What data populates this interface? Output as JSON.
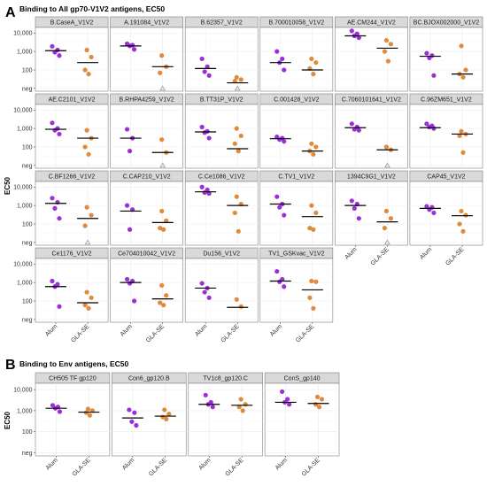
{
  "panel_a": {
    "letter": "A",
    "title": "Binding to All gp70-V1V2 antigens, EC50"
  },
  "panel_b": {
    "letter": "B",
    "title": "Binding to Env antigens, EC50"
  },
  "colors": {
    "alum": "#9b30d9",
    "gla_se": "#e08a3c",
    "neg_marker": "#9a9a9a",
    "median": "#000000"
  },
  "chart_data": [
    {
      "type": "scatter",
      "title": "Binding to All gp70-V1V2 antigens, EC50",
      "ylabel": "EC50",
      "y_scale": "log10",
      "y_ticks": [
        "neg",
        "100",
        "1,000",
        "10,000"
      ],
      "x_categories": [
        "Alum",
        "GLA-SE"
      ],
      "panels": [
        {
          "name": "B.CaseA_V1V2",
          "alum": [
            1900,
            1200,
            900,
            600
          ],
          "gla": [
            1200,
            500,
            100,
            60
          ],
          "alum_median": 1100,
          "gla_median": 250
        },
        {
          "name": "A.191084_V1V2",
          "alum": [
            2600,
            2200,
            2000,
            1300
          ],
          "gla": [
            600,
            150,
            70
          ],
          "gla_neg": 1,
          "alum_median": 2000,
          "gla_median": 150
        },
        {
          "name": "B.62357_V1V2",
          "alum": [
            400,
            150,
            80,
            50
          ],
          "gla": [
            40,
            30,
            25
          ],
          "gla_neg": 1,
          "alum_median": 120,
          "gla_median": 20
        },
        {
          "name": "B.700010058_V1V2",
          "alum": [
            1000,
            400,
            250,
            100
          ],
          "gla": [
            400,
            250,
            120,
            60
          ],
          "alum_median": 250,
          "gla_median": 100
        },
        {
          "name": "AE.CM244_V1V2",
          "alum": [
            13000,
            9000,
            7000,
            5500
          ],
          "gla": [
            4000,
            2500,
            1000,
            300
          ],
          "alum_median": 7000,
          "gla_median": 1500
        },
        {
          "name": "BC.BJOX002000_V1V2",
          "alum": [
            800,
            600,
            450,
            50
          ],
          "gla": [
            2000,
            100,
            60,
            40
          ],
          "alum_median": 550,
          "gla_median": 60
        },
        {
          "name": "AE.C2101_V1V2",
          "alum": [
            2000,
            1000,
            800,
            500
          ],
          "gla": [
            800,
            300,
            100,
            40
          ],
          "alum_median": 900,
          "gla_median": 300
        },
        {
          "name": "B.RHPA4259_V1V2",
          "alum": [
            900,
            300,
            60
          ],
          "gla": [
            250,
            50
          ],
          "gla_neg": 1,
          "alum_median": 300,
          "gla_median": 50
        },
        {
          "name": "B.TT31P_V1V2",
          "alum": [
            1200,
            700,
            600,
            300
          ],
          "gla": [
            1000,
            400,
            150,
            60
          ],
          "alum_median": 650,
          "gla_median": 80
        },
        {
          "name": "C.001428_V1V2",
          "alum": [
            350,
            300,
            250,
            200
          ],
          "gla": [
            150,
            100,
            60,
            40
          ],
          "alum_median": 280,
          "gla_median": 60
        },
        {
          "name": "C.7060101641_V1V2",
          "alum": [
            1800,
            1200,
            900,
            800
          ],
          "gla": [
            100,
            70
          ],
          "gla_neg": 1,
          "alum_median": 1100,
          "gla_median": 70
        },
        {
          "name": "C.96ZM651_V1V2",
          "alum": [
            1800,
            1400,
            1200,
            1000
          ],
          "gla": [
            700,
            500,
            400,
            50
          ],
          "alum_median": 1100,
          "gla_median": 500
        },
        {
          "name": "C.BF1266_V1V2",
          "alum": [
            2500,
            1500,
            700,
            200
          ],
          "gla": [
            800,
            300,
            80
          ],
          "gla_neg": 1,
          "alum_median": 1300,
          "gla_median": 200
        },
        {
          "name": "C.CAP210_V1V2",
          "alum": [
            1000,
            600,
            50
          ],
          "gla": [
            500,
            150,
            60,
            50
          ],
          "alum_median": 500,
          "gla_median": 120
        },
        {
          "name": "C.Ce1086_V1V2",
          "alum": [
            10000,
            7000,
            5000,
            4500
          ],
          "gla": [
            3000,
            1200,
            400,
            40
          ],
          "alum_median": 5500,
          "gla_median": 1000
        },
        {
          "name": "C.TV1_V1V2",
          "alum": [
            3000,
            1200,
            800,
            300
          ],
          "gla": [
            1000,
            400,
            60,
            50
          ],
          "alum_median": 1200,
          "gla_median": 250
        },
        {
          "name": "1394C9G1_V1V2",
          "alum": [
            1800,
            1200,
            700,
            200
          ],
          "gla": [
            500,
            200,
            60
          ],
          "gla_neg": 1,
          "alum_median": 1000,
          "gla_median": 130
        },
        {
          "name": "CAP45_V1V2",
          "alum": [
            900,
            800,
            600,
            400
          ],
          "gla": [
            500,
            300,
            100,
            40
          ],
          "alum_median": 700,
          "gla_median": 280
        },
        {
          "name": "Ce1176_V1V2",
          "alum": [
            1200,
            800,
            600,
            50
          ],
          "gla": [
            300,
            150,
            60,
            40
          ],
          "alum_median": 600,
          "gla_median": 80
        },
        {
          "name": "Ce704010042_V1V2",
          "alum": [
            1500,
            1200,
            900,
            100
          ],
          "gla": [
            700,
            200,
            80,
            60
          ],
          "alum_median": 1000,
          "gla_median": 130
        },
        {
          "name": "Du156_V1V2",
          "alum": [
            900,
            500,
            300,
            150
          ],
          "gla": [
            120,
            50
          ],
          "alum_median": 500,
          "gla_median": 45
        },
        {
          "name": "TV1_GSKvac_V1V2",
          "alum": [
            4000,
            1500,
            1100,
            600
          ],
          "gla": [
            1200,
            1100,
            150,
            40
          ],
          "alum_median": 1200,
          "gla_median": 400
        }
      ]
    },
    {
      "type": "scatter",
      "title": "Binding to Env antigens, EC50",
      "ylabel": "EC50",
      "y_scale": "log10",
      "y_ticks": [
        "neg",
        "100",
        "1,000",
        "10,000"
      ],
      "x_categories": [
        "Alum",
        "GLA-SE"
      ],
      "panels": [
        {
          "name": "CH505 TF gp120",
          "alum": [
            1800,
            1500,
            1300,
            900
          ],
          "gla": [
            1200,
            1000,
            800,
            600
          ],
          "alum_median": 1300,
          "gla_median": 850
        },
        {
          "name": "Con6_gp120.B",
          "alum": [
            1100,
            800,
            300,
            200
          ],
          "gla": [
            1100,
            700,
            500,
            400
          ],
          "alum_median": 450,
          "gla_median": 550
        },
        {
          "name": "TV1c8_gp120.C",
          "alum": [
            5500,
            2500,
            2000,
            1500
          ],
          "gla": [
            3500,
            2000,
            1500,
            1000
          ],
          "alum_median": 2000,
          "gla_median": 1800
        },
        {
          "name": "ConS_gp140",
          "alum": [
            8000,
            3500,
            2500,
            2000
          ],
          "gla": [
            4500,
            3500,
            2000,
            1500
          ],
          "alum_median": 2500,
          "gla_median": 2200
        }
      ]
    }
  ]
}
